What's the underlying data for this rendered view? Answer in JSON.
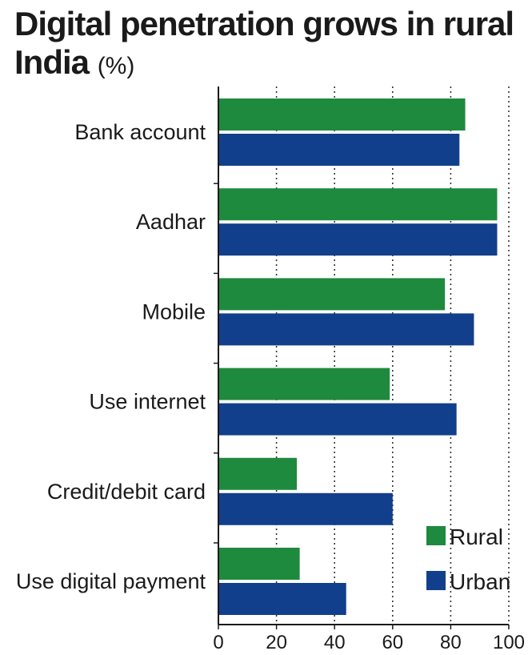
{
  "title": "Digital penetration grows in rural India",
  "title_unit": "(%)",
  "chart_data": {
    "type": "bar",
    "orientation": "horizontal",
    "title": "Digital penetration grows in rural India (%)",
    "categories": [
      "Bank account",
      "Aadhar",
      "Mobile",
      "Use internet",
      "Credit/debit card",
      "Use digital payment"
    ],
    "series": [
      {
        "name": "Rural",
        "color": "#1e8a3e",
        "values": [
          85,
          96,
          78,
          59,
          27,
          28
        ]
      },
      {
        "name": "Urban",
        "color": "#123f8c",
        "values": [
          83,
          96,
          88,
          82,
          60,
          44
        ]
      }
    ],
    "xlim": [
      0,
      100
    ],
    "xticks": [
      0,
      20,
      40,
      60,
      80,
      100
    ],
    "xlabel": "",
    "ylabel": "",
    "grid": "vertical dotted",
    "legend": "bottom-right"
  }
}
